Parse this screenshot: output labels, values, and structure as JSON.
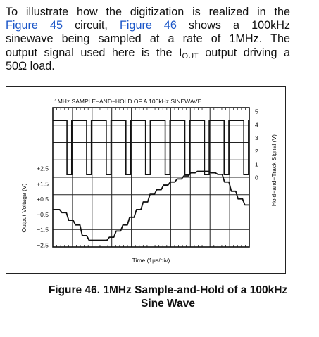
{
  "paragraph": {
    "line1": "To illustrate how the digitization is realized in the",
    "line2_link1": "Figure 45",
    "line2_mid": " circuit, ",
    "line2_link2": "Figure 46",
    "line2_end": " shows a 100kHz",
    "line3": "sinewave being sampled at a rate of 1MHz. The",
    "line4_start": "output signal used here is the I",
    "line4_sub": "OUT",
    "line4_end": " output driving a",
    "line5": "50Ω load."
  },
  "chart_data": {
    "type": "line",
    "title": "1MHz SAMPLE−AND−HOLD OF A 100kHz SINEWAVE",
    "xlabel": "Time (1µs/div)",
    "ylabel": "Output Voltage (V)",
    "y2label": "Hold−and−Track Signal (V)",
    "x_divisions": 10,
    "y_divisions": 8,
    "y_ticks": [
      "+2.5",
      "+1.5",
      "+0.5",
      "−0.5",
      "−1.5",
      "−2.5"
    ],
    "y2_ticks": [
      "5",
      "4",
      "3",
      "2",
      "1",
      "0"
    ],
    "series": [
      {
        "values": [
          -0.2,
          -0.4,
          -0.9,
          -1.2,
          -1.9,
          -2.2,
          -2.2,
          -2.2,
          -2.0,
          -1.6,
          -1.2,
          -0.7,
          -0.2,
          0.3,
          0.8,
          1.1,
          1.4,
          1.6,
          1.8,
          2.0,
          2.2,
          2.3,
          2.3,
          2.2,
          2.1,
          1.6,
          1.0,
          0.5,
          0.1
        ]
      },
      {
        "pulse_high": 4.3,
        "pulse_low": 0.2,
        "pulses_per_div": 1
      }
    ]
  },
  "caption": {
    "line1": "Figure 46. 1MHz Sample-and-Hold of a 100kHz",
    "line2": "Sine Wave"
  }
}
